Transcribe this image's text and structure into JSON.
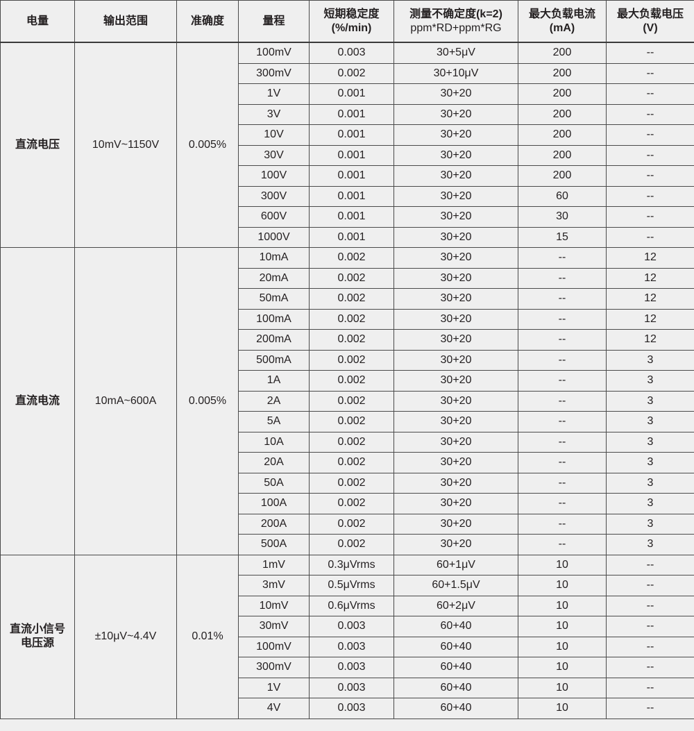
{
  "headers": [
    {
      "line1": "电量",
      "line2": ""
    },
    {
      "line1": "输出范围",
      "line2": ""
    },
    {
      "line1": "准确度",
      "line2": ""
    },
    {
      "line1": "量程",
      "line2": ""
    },
    {
      "line1": "短期稳定度",
      "line2": "(%/min)"
    },
    {
      "line1": "测量不确定度(k=2)",
      "line2": "ppm*RD+ppm*RG"
    },
    {
      "line1": "最大负载电流",
      "line2": "(mA)"
    },
    {
      "line1": "最大负载电压",
      "line2": "(V)"
    }
  ],
  "groups": [
    {
      "quantity": [
        "直流电压"
      ],
      "output_range": "10mV~1150V",
      "accuracy": "0.005%",
      "rows": [
        [
          "100mV",
          "0.003",
          "30+5μV",
          "200",
          "--"
        ],
        [
          "300mV",
          "0.002",
          "30+10μV",
          "200",
          "--"
        ],
        [
          "1V",
          "0.001",
          "30+20",
          "200",
          "--"
        ],
        [
          "3V",
          "0.001",
          "30+20",
          "200",
          "--"
        ],
        [
          "10V",
          "0.001",
          "30+20",
          "200",
          "--"
        ],
        [
          "30V",
          "0.001",
          "30+20",
          "200",
          "--"
        ],
        [
          "100V",
          "0.001",
          "30+20",
          "200",
          "--"
        ],
        [
          "300V",
          "0.001",
          "30+20",
          "60",
          "--"
        ],
        [
          "600V",
          "0.001",
          "30+20",
          "30",
          "--"
        ],
        [
          "1000V",
          "0.001",
          "30+20",
          "15",
          "--"
        ]
      ]
    },
    {
      "quantity": [
        "直流电流"
      ],
      "output_range": "10mA~600A",
      "accuracy": "0.005%",
      "rows": [
        [
          "10mA",
          "0.002",
          "30+20",
          "--",
          "12"
        ],
        [
          "20mA",
          "0.002",
          "30+20",
          "--",
          "12"
        ],
        [
          "50mA",
          "0.002",
          "30+20",
          "--",
          "12"
        ],
        [
          "100mA",
          "0.002",
          "30+20",
          "--",
          "12"
        ],
        [
          "200mA",
          "0.002",
          "30+20",
          "--",
          "12"
        ],
        [
          "500mA",
          "0.002",
          "30+20",
          "--",
          "3"
        ],
        [
          "1A",
          "0.002",
          "30+20",
          "--",
          "3"
        ],
        [
          "2A",
          "0.002",
          "30+20",
          "--",
          "3"
        ],
        [
          "5A",
          "0.002",
          "30+20",
          "--",
          "3"
        ],
        [
          "10A",
          "0.002",
          "30+20",
          "--",
          "3"
        ],
        [
          "20A",
          "0.002",
          "30+20",
          "--",
          "3"
        ],
        [
          "50A",
          "0.002",
          "30+20",
          "--",
          "3"
        ],
        [
          "100A",
          "0.002",
          "30+20",
          "--",
          "3"
        ],
        [
          "200A",
          "0.002",
          "30+20",
          "--",
          "3"
        ],
        [
          "500A",
          "0.002",
          "30+20",
          "--",
          "3"
        ]
      ]
    },
    {
      "quantity": [
        "直流小信号",
        "电压源"
      ],
      "output_range": "±10μV~4.4V",
      "accuracy": "0.01%",
      "rows": [
        [
          "1mV",
          "0.3μVrms",
          "60+1μV",
          "10",
          "--"
        ],
        [
          "3mV",
          "0.5μVrms",
          "60+1.5μV",
          "10",
          "--"
        ],
        [
          "10mV",
          "0.6μVrms",
          "60+2μV",
          "10",
          "--"
        ],
        [
          "30mV",
          "0.003",
          "60+40",
          "10",
          "--"
        ],
        [
          "100mV",
          "0.003",
          "60+40",
          "10",
          "--"
        ],
        [
          "300mV",
          "0.003",
          "60+40",
          "10",
          "--"
        ],
        [
          "1V",
          "0.003",
          "60+40",
          "10",
          "--"
        ],
        [
          "4V",
          "0.003",
          "60+40",
          "10",
          "--"
        ]
      ]
    }
  ]
}
